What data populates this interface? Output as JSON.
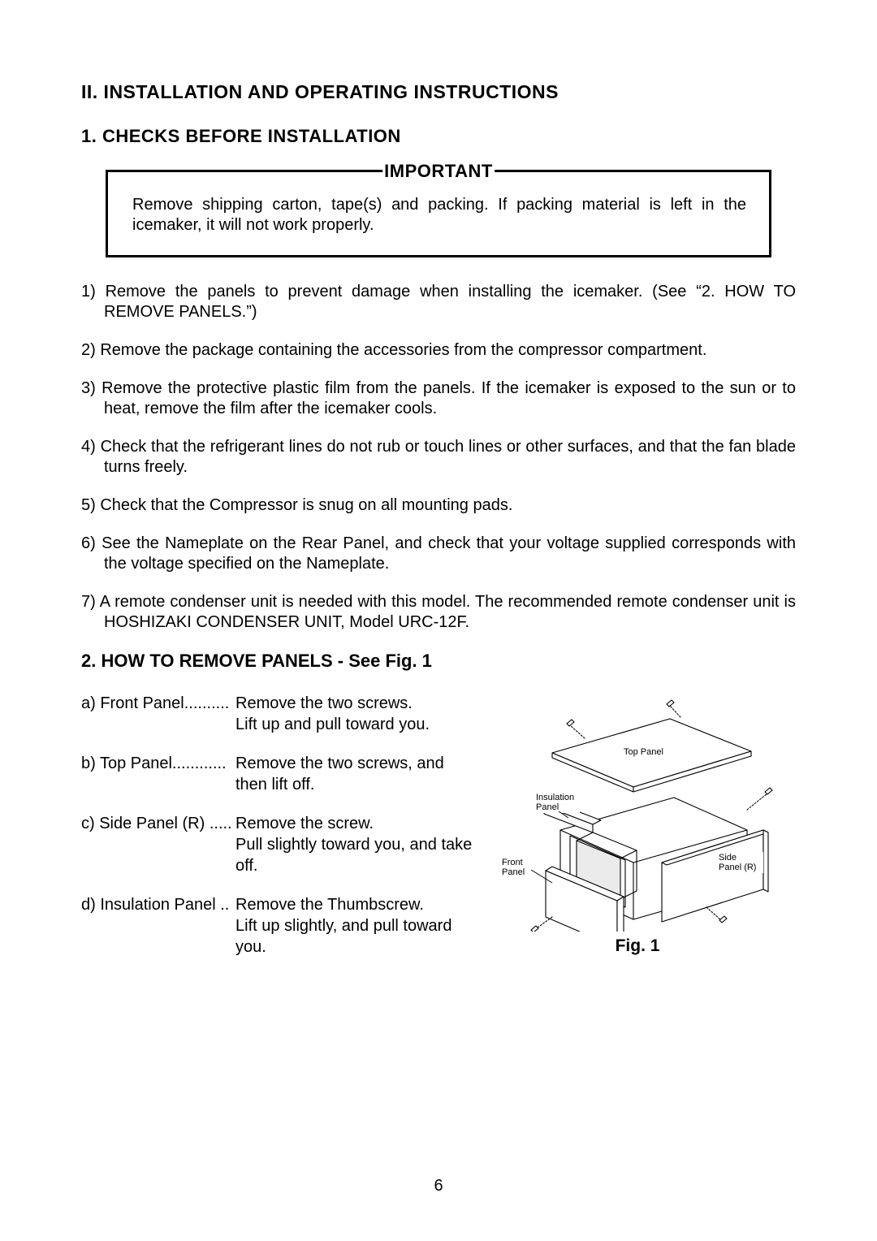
{
  "section_title": "II. INSTALLATION AND OPERATING INSTRUCTIONS",
  "subsection1_title": "1. CHECKS BEFORE INSTALLATION",
  "important": {
    "label": "IMPORTANT",
    "text": "Remove shipping carton, tape(s) and packing.  If packing material is left in the icemaker, it will not work properly."
  },
  "checks": [
    {
      "num": "1)",
      "text": "Remove the panels to prevent damage when installing the icemaker.  (See “2. HOW TO REMOVE PANELS.”)"
    },
    {
      "num": "2)",
      "text": "Remove the package containing the accessories from the compressor compartment."
    },
    {
      "num": "3)",
      "text": "Remove the protective plastic film from the panels.  If the icemaker is exposed to the sun or to heat, remove the film after the icemaker cools."
    },
    {
      "num": "4)",
      "text": "Check that the refrigerant lines do not rub or touch lines or other surfaces, and that the fan blade turns freely."
    },
    {
      "num": "5)",
      "text": "Check that the Compressor is snug on all mounting pads."
    },
    {
      "num": "6)",
      "text": "See the Nameplate on the Rear Panel, and check that your voltage supplied corresponds with the voltage specified on the Nameplate."
    },
    {
      "num": "7)",
      "text": "A remote condenser unit is needed with this model.  The recommended remote condenser unit is HOSHIZAKI CONDENSER UNIT, Model URC-12F."
    }
  ],
  "subsection2_title": "2. HOW TO REMOVE PANELS - See Fig. 1",
  "panels": [
    {
      "label": "a) Front Panel..........",
      "desc": "Remove the two screws.\nLift up and pull toward you."
    },
    {
      "label": "b) Top Panel............",
      "desc": "Remove the two screws, and then lift off."
    },
    {
      "label": "c) Side Panel (R) .....",
      "desc": "Remove the screw.\nPull slightly toward you, and take off."
    },
    {
      "label": "d) Insulation Panel ..",
      "desc": "Remove the Thumbscrew.\nLift up slightly, and pull toward you."
    }
  ],
  "figure": {
    "caption": "Fig. 1",
    "labels": {
      "top_panel": "Top Panel",
      "insulation_panel_l1": "Insulation",
      "insulation_panel_l2": "Panel",
      "front_panel_l1": "Front",
      "front_panel_l2": "Panel",
      "side_panel_l1": "Side",
      "side_panel_l2": "Panel (R)"
    },
    "style": {
      "stroke": "#000000",
      "stroke_width": 1.1,
      "fill": "#ffffff"
    }
  },
  "page_number": "6"
}
